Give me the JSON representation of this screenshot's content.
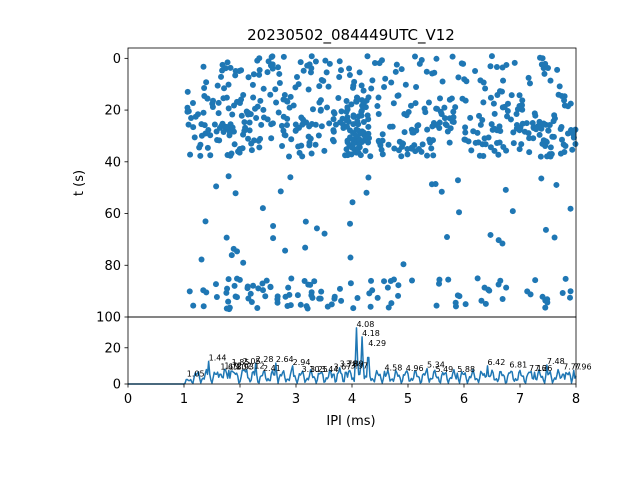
{
  "chart_data": [
    {
      "type": "scatter",
      "title": "20230502_084449UTC_V12",
      "xlabel": "",
      "ylabel": "t (s)",
      "xlim": [
        0,
        8
      ],
      "ylim": [
        100,
        -4
      ],
      "y_inverted": true,
      "yticks": [
        0,
        20,
        40,
        60,
        80,
        100
      ],
      "grid": false,
      "color": "#1f77b4",
      "bands": [
        {
          "t_min": -1,
          "t_max": 13,
          "count": 120,
          "x_min": 1.05,
          "x_max": 8.0
        },
        {
          "t_min": 14,
          "t_max": 28,
          "count": 190,
          "x_min": 1.05,
          "x_max": 8.0
        },
        {
          "t_min": 25,
          "t_max": 38,
          "count": 200,
          "x_min": 1.05,
          "x_max": 8.0
        },
        {
          "t_min": 45,
          "t_max": 80,
          "count": 42,
          "x_min": 1.0,
          "x_max": 8.0
        },
        {
          "t_min": 85,
          "t_max": 97,
          "count": 110,
          "x_min": 1.05,
          "x_max": 8.0
        }
      ],
      "dense_column": {
        "x_min": 3.9,
        "x_max": 4.3,
        "t_min": 15,
        "t_max": 38,
        "count": 60
      }
    },
    {
      "type": "line",
      "xlabel": "IPI (ms)",
      "ylabel": "",
      "xlim": [
        0,
        8
      ],
      "ylim": [
        0,
        37
      ],
      "xticks": [
        0,
        1,
        2,
        3,
        4,
        5,
        6,
        7,
        8
      ],
      "yticks": [
        0,
        20
      ],
      "color": "#1f77b4",
      "baseline_level": 4,
      "peaks": [
        {
          "x": 1.05,
          "y": 3.5
        },
        {
          "x": 1.25,
          "y": 6.5
        },
        {
          "x": 1.44,
          "y": 12.5
        },
        {
          "x": 1.65,
          "y": 7.5
        },
        {
          "x": 1.72,
          "y": 8.0
        },
        {
          "x": 1.8,
          "y": 7.5
        },
        {
          "x": 1.85,
          "y": 10.0
        },
        {
          "x": 1.93,
          "y": 7.5
        },
        {
          "x": 2.05,
          "y": 10.5
        },
        {
          "x": 2.12,
          "y": 8.0
        },
        {
          "x": 2.28,
          "y": 11.5
        },
        {
          "x": 2.41,
          "y": 6.5
        },
        {
          "x": 2.64,
          "y": 11.5
        },
        {
          "x": 2.94,
          "y": 10.0
        },
        {
          "x": 3.1,
          "y": 6.0
        },
        {
          "x": 3.25,
          "y": 6.0
        },
        {
          "x": 3.44,
          "y": 6.0
        },
        {
          "x": 3.67,
          "y": 7.5
        },
        {
          "x": 3.78,
          "y": 9.0
        },
        {
          "x": 3.89,
          "y": 9.0
        },
        {
          "x": 3.97,
          "y": 8.0
        },
        {
          "x": 4.08,
          "y": 31.0
        },
        {
          "x": 4.18,
          "y": 26.0
        },
        {
          "x": 4.29,
          "y": 20.5
        },
        {
          "x": 4.58,
          "y": 7.0
        },
        {
          "x": 4.96,
          "y": 6.5
        },
        {
          "x": 5.34,
          "y": 8.5
        },
        {
          "x": 5.49,
          "y": 6.0
        },
        {
          "x": 5.88,
          "y": 6.0
        },
        {
          "x": 6.42,
          "y": 10.0
        },
        {
          "x": 6.81,
          "y": 8.5
        },
        {
          "x": 7.16,
          "y": 6.5
        },
        {
          "x": 7.26,
          "y": 6.5
        },
        {
          "x": 7.48,
          "y": 10.5
        },
        {
          "x": 7.77,
          "y": 7.5
        },
        {
          "x": 7.96,
          "y": 7.5
        }
      ],
      "annotations": [
        {
          "x": 1.05,
          "y": 3.5,
          "text": "1.05"
        },
        {
          "x": 1.44,
          "y": 12.5,
          "text": "1.44"
        },
        {
          "x": 1.65,
          "y": 7.5,
          "text": "1.65"
        },
        {
          "x": 1.72,
          "y": 8.0,
          "text": "1.72"
        },
        {
          "x": 1.8,
          "y": 7.5,
          "text": "1.80"
        },
        {
          "x": 1.85,
          "y": 10.0,
          "text": "1.85"
        },
        {
          "x": 1.93,
          "y": 7.5,
          "text": "1.93"
        },
        {
          "x": 2.05,
          "y": 10.5,
          "text": "2.05"
        },
        {
          "x": 2.12,
          "y": 8.0,
          "text": "2.12"
        },
        {
          "x": 2.28,
          "y": 11.5,
          "text": "2.28"
        },
        {
          "x": 2.41,
          "y": 6.5,
          "text": "2.41"
        },
        {
          "x": 2.64,
          "y": 11.5,
          "text": "2.64"
        },
        {
          "x": 2.94,
          "y": 10.0,
          "text": "2.94"
        },
        {
          "x": 3.1,
          "y": 6.0,
          "text": "3.10"
        },
        {
          "x": 3.25,
          "y": 6.0,
          "text": "3.25"
        },
        {
          "x": 3.44,
          "y": 6.0,
          "text": "3.44"
        },
        {
          "x": 3.67,
          "y": 7.5,
          "text": "3.67"
        },
        {
          "x": 3.78,
          "y": 9.0,
          "text": "3.78"
        },
        {
          "x": 3.89,
          "y": 9.0,
          "text": "3.89"
        },
        {
          "x": 3.97,
          "y": 8.0,
          "text": "3.97"
        },
        {
          "x": 4.08,
          "y": 31.0,
          "text": "4.08"
        },
        {
          "x": 4.18,
          "y": 26.0,
          "text": "4.18"
        },
        {
          "x": 4.29,
          "y": 20.5,
          "text": "4.29"
        },
        {
          "x": 4.58,
          "y": 7.0,
          "text": "4.58"
        },
        {
          "x": 4.96,
          "y": 6.5,
          "text": "4.96"
        },
        {
          "x": 5.34,
          "y": 8.5,
          "text": "5.34"
        },
        {
          "x": 5.49,
          "y": 6.0,
          "text": "5.49"
        },
        {
          "x": 5.88,
          "y": 6.0,
          "text": "5.88"
        },
        {
          "x": 6.42,
          "y": 10.0,
          "text": "6.42"
        },
        {
          "x": 6.81,
          "y": 8.5,
          "text": "6.81"
        },
        {
          "x": 7.16,
          "y": 6.5,
          "text": "7.16"
        },
        {
          "x": 7.26,
          "y": 6.5,
          "text": "7.26"
        },
        {
          "x": 7.48,
          "y": 10.5,
          "text": "7.48"
        },
        {
          "x": 7.77,
          "y": 7.5,
          "text": "7.77"
        },
        {
          "x": 7.96,
          "y": 7.5,
          "text": "7.96"
        }
      ]
    }
  ]
}
